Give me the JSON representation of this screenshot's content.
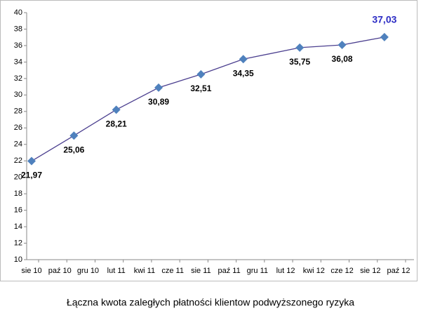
{
  "chart_data": {
    "type": "line",
    "caption": "Łączna kwota zaległych płatności klientow podwyższonego ryzyka",
    "x": [
      "2010-08",
      "2010-11",
      "2011-02",
      "2011-05",
      "2011-08",
      "2011-11",
      "2012-03",
      "2012-06",
      "2012-09"
    ],
    "series": [
      {
        "color": "#4b3f8f",
        "marker_color": "#4f81bd",
        "values": [
          21.97,
          25.06,
          28.21,
          30.89,
          32.51,
          34.35,
          35.75,
          36.08,
          37.03
        ],
        "value_labels": [
          "21,97",
          "25,06",
          "28,21",
          "30,89",
          "32,51",
          "34,35",
          "35,75",
          "36,08",
          "37,03"
        ]
      }
    ],
    "highlight_label_color": "#2b2bc4",
    "xlim": [
      "2010-08",
      "2012-10"
    ],
    "xticks": [
      {
        "value": "2010-08",
        "label": "sie 10"
      },
      {
        "value": "2010-10",
        "label": "paź 10"
      },
      {
        "value": "2010-12",
        "label": "gru 10"
      },
      {
        "value": "2011-02",
        "label": "lut 11"
      },
      {
        "value": "2011-04",
        "label": "kwi 11"
      },
      {
        "value": "2011-06",
        "label": "cze 11"
      },
      {
        "value": "2011-08",
        "label": "sie 11"
      },
      {
        "value": "2011-10",
        "label": "paź 11"
      },
      {
        "value": "2011-12",
        "label": "gru 11"
      },
      {
        "value": "2012-02",
        "label": "lut 12"
      },
      {
        "value": "2012-04",
        "label": "kwi 12"
      },
      {
        "value": "2012-06",
        "label": "cze 12"
      },
      {
        "value": "2012-08",
        "label": "sie 12"
      },
      {
        "value": "2012-10",
        "label": "paź 12"
      }
    ],
    "ylim": [
      10,
      40
    ],
    "yticks": [
      10,
      12,
      14,
      16,
      18,
      20,
      22,
      24,
      26,
      28,
      30,
      32,
      34,
      36,
      38,
      40
    ],
    "grid": false
  }
}
